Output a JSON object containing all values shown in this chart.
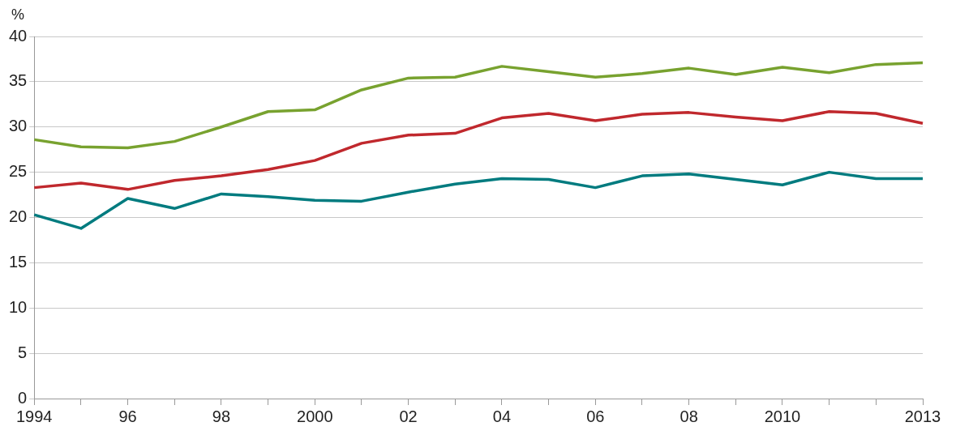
{
  "chart_data": {
    "type": "line",
    "ylabel": "%",
    "categories": [
      "1994",
      null,
      "96",
      null,
      "98",
      null,
      "2000",
      null,
      "02",
      null,
      "04",
      null,
      "06",
      null,
      "08",
      null,
      "2010",
      null,
      null,
      "2013"
    ],
    "series": [
      {
        "color": "#78a22f",
        "values": [
          28.6,
          27.8,
          27.7,
          28.4,
          30.0,
          31.7,
          31.9,
          34.1,
          35.4,
          35.5,
          36.7,
          36.1,
          35.5,
          35.9,
          36.5,
          35.8,
          36.6,
          36.0,
          36.9,
          37.1
        ]
      },
      {
        "color": "#c0282d",
        "values": [
          23.3,
          23.8,
          23.1,
          24.1,
          24.6,
          25.3,
          26.3,
          28.2,
          29.1,
          29.3,
          31.0,
          31.5,
          30.7,
          31.4,
          31.6,
          31.1,
          30.7,
          31.7,
          31.5,
          30.4
        ]
      },
      {
        "color": "#007b7f",
        "values": [
          20.3,
          18.8,
          22.1,
          21.0,
          22.6,
          22.3,
          21.9,
          21.8,
          22.8,
          23.7,
          24.3,
          24.2,
          23.3,
          24.6,
          24.8,
          24.2,
          23.6,
          25.0,
          24.3,
          24.3
        ]
      }
    ],
    "ylim": [
      0,
      40
    ],
    "yticks": [
      0,
      5,
      10,
      15,
      20,
      25,
      30,
      35,
      40
    ],
    "grid": "y",
    "legend": false,
    "marker": "none",
    "line_style": "solid"
  }
}
